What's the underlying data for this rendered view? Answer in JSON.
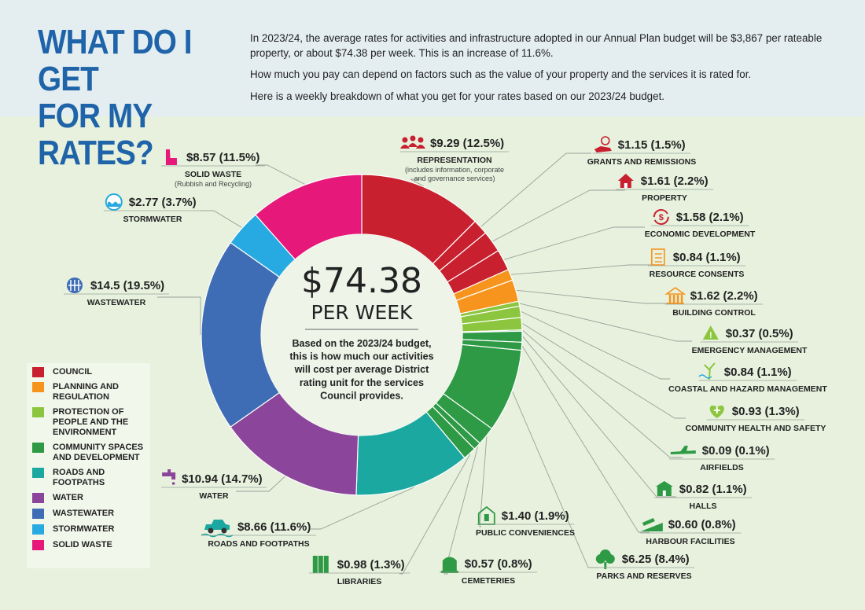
{
  "header": {
    "title_line1": "WHAT DO I GET",
    "title_line2": "FOR MY RATES?",
    "intro1": "In 2023/24, the average rates for activities and infrastructure adopted in our Annual Plan budget will be $3,867 per rateable property, or about $74.38 per week. This is an increase of 11.6%.",
    "intro2": "How much you pay can depend on factors such as the value of your property and the services it is rated for.",
    "intro3": "Here is a weekly breakdown of what you get for your rates based on our 2023/24 budget."
  },
  "center": {
    "value": "$74.38",
    "per": "PER WEEK",
    "desc": [
      "Based on the 2023/24 budget,",
      "this is  how much our activities",
      "will cost per average District",
      "rating unit for the services",
      "Council provides."
    ]
  },
  "colors": {
    "council": "#c8202f",
    "planning": "#f7941d",
    "protection": "#8cc63f",
    "community": "#2e9a45",
    "roads": "#1aa8a0",
    "water": "#8b459a",
    "wastewater": "#3f6db5",
    "stormwater": "#27aae1",
    "solid_waste": "#e6197a"
  },
  "legend": [
    {
      "label": "COUNCIL",
      "group": "council"
    },
    {
      "label": "PLANNING AND REGULATION",
      "group": "planning"
    },
    {
      "label": "PROTECTION OF PEOPLE AND THE ENVIRONMENT",
      "group": "protection"
    },
    {
      "label": "COMMUNITY SPACES AND DEVELOPMENT",
      "group": "community"
    },
    {
      "label": "ROADS AND FOOTPATHS",
      "group": "roads"
    },
    {
      "label": "WATER",
      "group": "water"
    },
    {
      "label": "WASTEWATER",
      "group": "wastewater"
    },
    {
      "label": "STORMWATER",
      "group": "stormwater"
    },
    {
      "label": "SOLID WASTE",
      "group": "solid_waste"
    }
  ],
  "chart_data": {
    "type": "pie",
    "title": "$74.38 PER WEEK",
    "total": 74.38,
    "slices": [
      {
        "name": "REPRESENTATION",
        "value": 9.29,
        "display": "$9.29 (12.5%)",
        "note": [
          "(includes information, corporate",
          "and governance services)"
        ],
        "group": "council",
        "icon": "people-icon"
      },
      {
        "name": "GRANTS AND REMISSIONS",
        "value": 1.15,
        "display": "$1.15 (1.5%)",
        "group": "council",
        "icon": "grant-hand-icon"
      },
      {
        "name": "PROPERTY",
        "value": 1.61,
        "display": "$1.61 (2.2%)",
        "group": "council",
        "icon": "house-icon"
      },
      {
        "name": "ECONOMIC DEVELOPMENT",
        "value": 1.58,
        "display": "$1.58 (2.1%)",
        "group": "council",
        "icon": "dollar-cycle-icon"
      },
      {
        "name": "RESOURCE CONSENTS",
        "value": 0.84,
        "display": "$0.84 (1.1%)",
        "group": "planning",
        "icon": "checklist-icon"
      },
      {
        "name": "BUILDING CONTROL",
        "value": 1.62,
        "display": "$1.62 (2.2%)",
        "group": "planning",
        "icon": "building-icon"
      },
      {
        "name": "EMERGENCY MANAGEMENT",
        "value": 0.37,
        "display": "$0.37 (0.5%)",
        "group": "protection",
        "icon": "warning-icon"
      },
      {
        "name": "COASTAL AND HAZARD MANAGEMENT",
        "value": 0.84,
        "display": "$0.84 (1.1%)",
        "group": "protection",
        "icon": "coast-tree-icon"
      },
      {
        "name": "COMMUNITY HEALTH AND SAFETY",
        "value": 0.93,
        "display": "$0.93 (1.3%)",
        "group": "protection",
        "icon": "health-heart-icon"
      },
      {
        "name": "AIRFIELDS",
        "value": 0.09,
        "display": "$0.09 (0.1%)",
        "group": "community",
        "icon": "plane-icon"
      },
      {
        "name": "HALLS",
        "value": 0.82,
        "display": "$0.82 (1.1%)",
        "group": "community",
        "icon": "hall-icon"
      },
      {
        "name": "HARBOUR FACILITIES",
        "value": 0.6,
        "display": "$0.60 (0.8%)",
        "group": "community",
        "icon": "boat-ramp-icon"
      },
      {
        "name": "PARKS AND RESERVES",
        "value": 6.25,
        "display": "$6.25 (8.4%)",
        "group": "community",
        "icon": "tree-icon"
      },
      {
        "name": "PUBLIC CONVENIENCES",
        "value": 1.4,
        "display": "$1.40 (1.9%)",
        "group": "community",
        "icon": "toilet-icon"
      },
      {
        "name": "CEMETERIES",
        "value": 0.57,
        "display": "$0.57 (0.8%)",
        "group": "community",
        "icon": "headstone-icon"
      },
      {
        "name": "LIBRARIES",
        "value": 0.98,
        "display": "$0.98 (1.3%)",
        "group": "community",
        "icon": "books-icon"
      },
      {
        "name": "ROADS AND FOOTPATHS",
        "value": 8.66,
        "display": "$8.66 (11.6%)",
        "group": "roads",
        "icon": "car-icon"
      },
      {
        "name": "WATER",
        "value": 10.94,
        "display": "$10.94 (14.7%)",
        "group": "water",
        "icon": "tap-icon"
      },
      {
        "name": "WASTEWATER",
        "value": 14.5,
        "display": "$14.5 (19.5%)",
        "group": "wastewater",
        "icon": "drain-icon"
      },
      {
        "name": "STORMWATER",
        "value": 2.77,
        "display": "$2.77 (3.7%)",
        "group": "stormwater",
        "icon": "water-wave-icon"
      },
      {
        "name": "SOLID WASTE",
        "value": 8.57,
        "display": "$8.57 (11.5%)",
        "note": [
          "(Rubbish and Recycling)"
        ],
        "group": "solid_waste",
        "icon": "bin-icon"
      }
    ]
  }
}
